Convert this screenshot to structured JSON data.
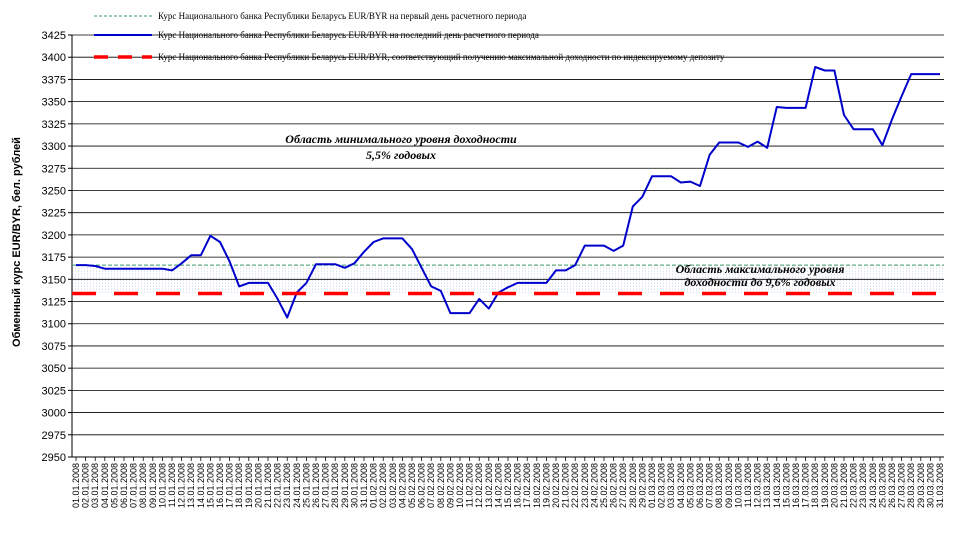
{
  "chart_data": {
    "type": "line",
    "ylabel": "Обменный курс EUR/BYR, бел. рублей",
    "ylim": [
      2950,
      3425
    ],
    "ytick_step": 25,
    "grid": true,
    "x": [
      "01.01.2008",
      "02.01.2008",
      "03.01.2008",
      "04.01.2008",
      "05.01.2008",
      "06.01.2008",
      "07.01.2008",
      "08.01.2008",
      "09.01.2008",
      "10.01.2008",
      "11.01.2008",
      "12.01.2008",
      "13.01.2008",
      "14.01.2008",
      "15.01.2008",
      "16.01.2008",
      "17.01.2008",
      "18.01.2008",
      "19.01.2008",
      "20.01.2008",
      "21.01.2008",
      "22.01.2008",
      "23.01.2008",
      "24.01.2008",
      "25.01.2008",
      "26.01.2008",
      "27.01.2008",
      "28.01.2008",
      "29.01.2008",
      "30.01.2008",
      "31.01.2008",
      "01.02.2008",
      "02.02.2008",
      "03.02.2008",
      "04.02.2008",
      "05.02.2008",
      "06.02.2008",
      "07.02.2008",
      "08.02.2008",
      "09.02.2008",
      "10.02.2008",
      "11.02.2008",
      "12.02.2008",
      "13.02.2008",
      "14.02.2008",
      "15.02.2008",
      "16.02.2008",
      "17.02.2008",
      "18.02.2008",
      "19.02.2008",
      "20.02.2008",
      "21.02.2008",
      "22.02.2008",
      "23.02.2008",
      "24.02.2008",
      "25.02.2008",
      "26.02.2008",
      "27.02.2008",
      "28.02.2008",
      "29.02.2008",
      "01.03.2008",
      "02.03.2008",
      "03.03.2008",
      "04.03.2008",
      "05.03.2008",
      "06.03.2008",
      "07.03.2008",
      "08.03.2008",
      "09.03.2008",
      "10.03.2008",
      "11.03.2008",
      "12.03.2008",
      "13.03.2008",
      "14.03.2008",
      "15.03.2008",
      "16.03.2008",
      "17.03.2008",
      "18.03.2008",
      "19.03.2008",
      "20.03.2008",
      "21.03.2008",
      "22.03.2008",
      "23.03.2008",
      "24.03.2008",
      "25.03.2008",
      "26.03.2008",
      "27.03.2008",
      "28.03.2008",
      "29.03.2008",
      "30.03.2008",
      "31.03.2008"
    ],
    "series": [
      {
        "name": "Курс Национального банка Республики Беларусь EUR/BYR на первый день расчетного периода",
        "style": "dashed",
        "color": "#339966",
        "constant": 3166
      },
      {
        "name": "Курс Национального банка Республики Беларусь EUR/BYR на последний день расчетного периода",
        "style": "solid",
        "color": "#0000cc",
        "values": [
          3166,
          3166,
          3165,
          3162,
          3162,
          3162,
          3162,
          3162,
          3162,
          3162,
          3160,
          3168,
          3177,
          3177,
          3199,
          3192,
          3170,
          3142,
          3146,
          3146,
          3146,
          3128,
          3107,
          3135,
          3146,
          3167,
          3167,
          3167,
          3163,
          3168,
          3181,
          3192,
          3196,
          3196,
          3196,
          3184,
          3163,
          3142,
          3137,
          3112,
          3112,
          3112,
          3128,
          3117,
          3135,
          3141,
          3146,
          3146,
          3146,
          3146,
          3160,
          3160,
          3166,
          3188,
          3188,
          3188,
          3182,
          3188,
          3232,
          3243,
          3266,
          3266,
          3266,
          3259,
          3260,
          3255,
          3290,
          3304,
          3304,
          3304,
          3299,
          3305,
          3298,
          3344,
          3343,
          3343,
          3343,
          3389,
          3385,
          3385,
          3335,
          3319,
          3319,
          3319,
          3301,
          3330,
          3356,
          3381,
          3381,
          3381,
          3381
        ]
      },
      {
        "name": "Курс Национального банка Республики Беларусь EUR/BYR, соответствующий получению максимальной доходности по индексируемому депозиту",
        "style": "dashed-thick",
        "color": "#ff0000",
        "constant": 3134
      }
    ],
    "annotations": [
      {
        "text_lines": [
          "Область минимального уровня доходности",
          "5,5% годовых"
        ]
      },
      {
        "text_lines": [
          "Область максимального уровня",
          "доходности до 9,6% годовых"
        ]
      }
    ],
    "legend_placement": "top"
  }
}
